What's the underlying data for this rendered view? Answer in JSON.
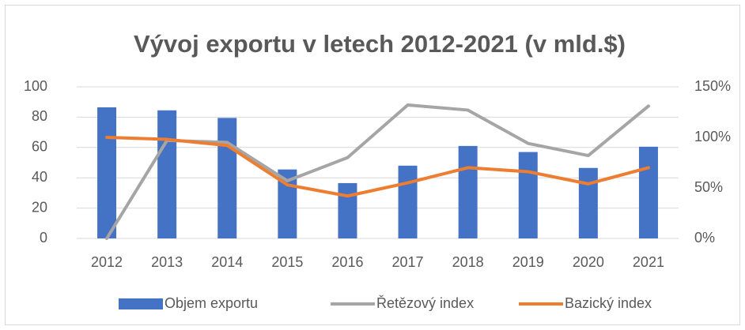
{
  "chart_data": {
    "type": "bar-line",
    "title": "Vývoj exportu v letech 2012-2021 (v mld.$)",
    "categories": [
      "2012",
      "2013",
      "2014",
      "2015",
      "2016",
      "2017",
      "2018",
      "2019",
      "2020",
      "2021"
    ],
    "series": [
      {
        "name": "Objem exportu",
        "type": "bar",
        "color": "#4472c4",
        "values": [
          86.5,
          84.5,
          79.5,
          45.5,
          36.5,
          48,
          61,
          57,
          46.5,
          60.5
        ]
      },
      {
        "name": "Řetězový index",
        "type": "line",
        "axis": "y2",
        "color": "#a5a5a5",
        "values": [
          0,
          97,
          95,
          57,
          80,
          132,
          127,
          94,
          82,
          131
        ]
      },
      {
        "name": "Bazický index",
        "type": "line",
        "axis": "y2",
        "color": "#ed7d31",
        "values": [
          100,
          98,
          92,
          53,
          42,
          55,
          70,
          66,
          54,
          70
        ]
      }
    ],
    "ylim": [
      0,
      100
    ],
    "yticks": [
      0,
      20,
      40,
      60,
      80,
      100
    ],
    "y2lim": [
      0,
      150
    ],
    "y2ticks": [
      {
        "value": 0,
        "label": "0%"
      },
      {
        "value": 50,
        "label": "50%"
      },
      {
        "value": 100,
        "label": "100%"
      },
      {
        "value": 150,
        "label": "150%"
      }
    ],
    "grid": true,
    "legend": "bottom"
  }
}
